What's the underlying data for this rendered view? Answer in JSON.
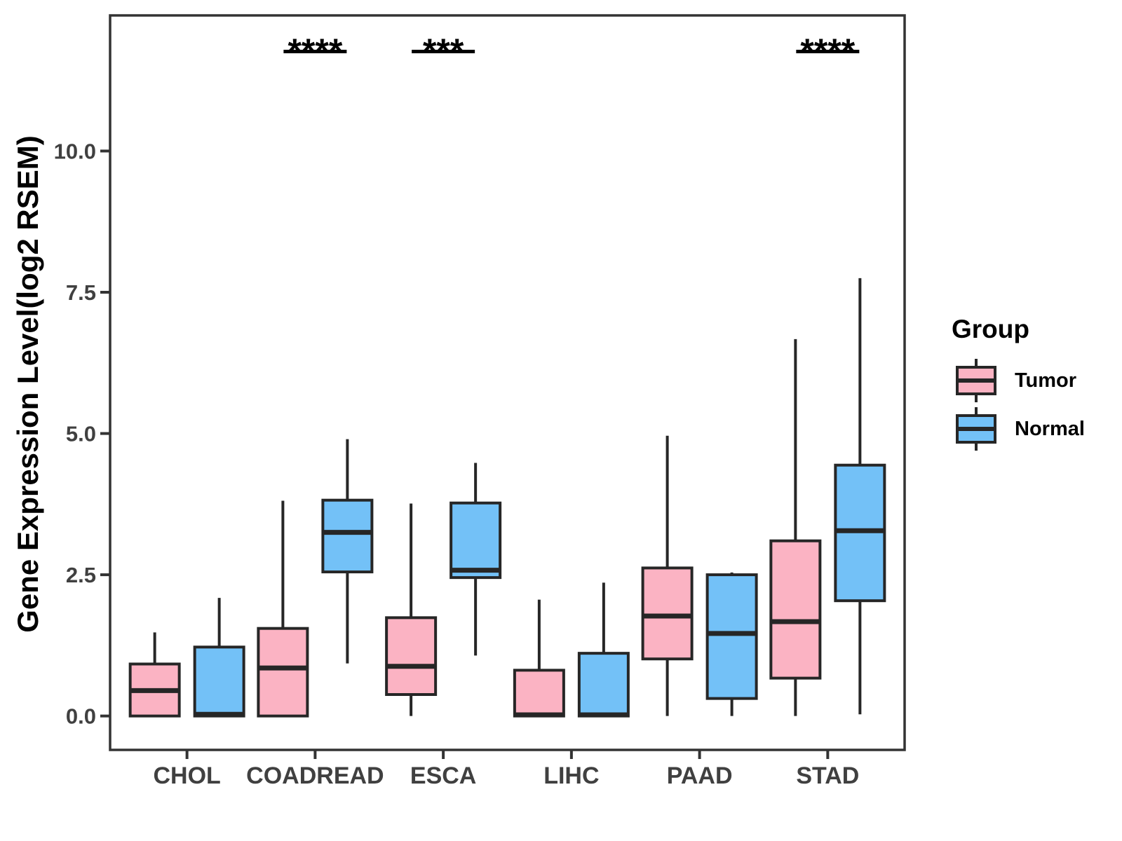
{
  "chart_data": {
    "type": "boxplot",
    "title": "",
    "xlabel": "",
    "ylabel": "Gene Expression Level(log2 RSEM)",
    "categories": [
      "CHOL",
      "COADREAD",
      "ESCA",
      "LIHC",
      "PAAD",
      "STAD"
    ],
    "y_ticks": [
      "0.0",
      "2.5",
      "5.0",
      "7.5",
      "10.0"
    ],
    "y_tick_values": [
      0,
      2.5,
      5,
      7.5,
      10
    ],
    "ylim": [
      -0.6,
      12.4
    ],
    "grid": false,
    "background": "#ffffff",
    "panel_border_color": "#333333",
    "box_stroke_color": "#262626",
    "axis_text_color": "#404040",
    "series": [
      {
        "name": "Tumor",
        "color": "#FBB3C3",
        "values": [
          {
            "min": 0.0,
            "q1": 0.0,
            "median": 0.45,
            "q3": 0.92,
            "max": 1.48
          },
          {
            "min": 0.0,
            "q1": 0.0,
            "median": 0.85,
            "q3": 1.55,
            "max": 3.81
          },
          {
            "min": 0.0,
            "q1": 0.38,
            "median": 0.88,
            "q3": 1.74,
            "max": 3.76
          },
          {
            "min": 0.0,
            "q1": 0.0,
            "median": 0.02,
            "q3": 0.81,
            "max": 2.06
          },
          {
            "min": 0.0,
            "q1": 1.01,
            "median": 1.77,
            "q3": 2.62,
            "max": 4.96
          },
          {
            "min": 0.0,
            "q1": 0.67,
            "median": 1.67,
            "q3": 3.1,
            "max": 6.67
          }
        ]
      },
      {
        "name": "Normal",
        "color": "#73C1F7",
        "values": [
          {
            "min": 0.0,
            "q1": 0.0,
            "median": 0.03,
            "q3": 1.22,
            "max": 2.09
          },
          {
            "min": 0.93,
            "q1": 2.55,
            "median": 3.25,
            "q3": 3.82,
            "max": 4.9
          },
          {
            "min": 1.07,
            "q1": 2.45,
            "median": 2.58,
            "q3": 3.77,
            "max": 4.48
          },
          {
            "min": 0.0,
            "q1": 0.0,
            "median": 0.02,
            "q3": 1.11,
            "max": 2.36
          },
          {
            "min": 0.0,
            "q1": 0.31,
            "median": 1.46,
            "q3": 2.5,
            "max": 2.54
          },
          {
            "min": 0.03,
            "q1": 2.04,
            "median": 3.28,
            "q3": 4.44,
            "max": 7.75
          }
        ]
      }
    ],
    "significance": [
      {
        "category": "COADREAD",
        "label": "****"
      },
      {
        "category": "ESCA",
        "label": "***"
      },
      {
        "category": "STAD",
        "label": "****"
      }
    ],
    "legend": {
      "title": "Group",
      "position": "right",
      "items": [
        {
          "label": "Tumor",
          "color": "#FBB3C3"
        },
        {
          "label": "Normal",
          "color": "#73C1F7"
        }
      ]
    }
  }
}
